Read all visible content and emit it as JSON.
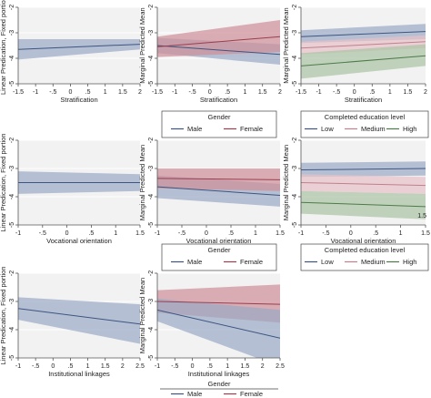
{
  "colors": {
    "navy": "#3e5580",
    "navy_band": "#9aaac6",
    "red": "#9b3e4e",
    "red_band": "#cf8f98",
    "pink": "#c0808c",
    "pink_band": "#e7c2c8",
    "green": "#4e7a4a",
    "green_band": "#a9c3a4",
    "plot_bg": "#f2f2f2",
    "grid": "#ffffff",
    "axis": "#555555"
  },
  "legends": {
    "gender": {
      "title": "Gender",
      "entries": [
        "Male",
        "Female"
      ]
    },
    "education": {
      "title": "Completed education level",
      "entries": [
        "Low",
        "Medium",
        "High"
      ]
    }
  },
  "stray_text": "1.5",
  "chart_data": [
    {
      "id": "r1c1",
      "type": "line",
      "xlabel": "Stratification",
      "ylabel": "Linear Predication, Fixed portion",
      "xticks": [
        "-1.5",
        "-1",
        "-.5",
        "0",
        ".5",
        "1",
        "1.5",
        "2"
      ],
      "xlim": [
        -1.5,
        2
      ],
      "yticks": [
        "-2",
        "-3",
        "-4",
        "-5"
      ],
      "ylim": [
        -5,
        -2
      ],
      "series": [
        {
          "color": "navy",
          "x": [
            -1.5,
            2
          ],
          "y": [
            -3.65,
            -3.45
          ],
          "lo": [
            -4.05,
            -3.65
          ],
          "hi": [
            -3.25,
            -3.25
          ]
        }
      ]
    },
    {
      "id": "r1c2",
      "type": "line",
      "xlabel": "Stratification",
      "ylabel": "Marginal Predicted Mean",
      "xticks": [
        "-1.5",
        "-1",
        "-.5",
        "0",
        ".5",
        "1",
        "1.5",
        "2"
      ],
      "xlim": [
        -1.5,
        2
      ],
      "yticks": [
        "-2",
        "-3",
        "-4",
        "-5"
      ],
      "ylim": [
        -5,
        -2
      ],
      "series": [
        {
          "color": "navy",
          "x": [
            -1.5,
            2
          ],
          "y": [
            -3.5,
            -3.85
          ],
          "lo": [
            -3.8,
            -4.25
          ],
          "hi": [
            -3.2,
            -3.45
          ]
        },
        {
          "color": "red",
          "x": [
            -1.5,
            2
          ],
          "y": [
            -3.55,
            -3.15
          ],
          "lo": [
            -3.95,
            -3.75
          ],
          "hi": [
            -3.15,
            -2.5
          ]
        }
      ]
    },
    {
      "id": "r1c3",
      "type": "line",
      "xlabel": "Stratification",
      "ylabel": "Marginal Predicted Mean",
      "xticks": [
        "-1.5",
        "-1",
        "-.5",
        "0",
        ".5",
        "1",
        "1.5",
        "2"
      ],
      "xlim": [
        -1.5,
        2
      ],
      "yticks": [
        "-2",
        "-3",
        "-4",
        "-5"
      ],
      "ylim": [
        -5,
        -2
      ],
      "series": [
        {
          "color": "navy",
          "x": [
            -1.5,
            2
          ],
          "y": [
            -3.15,
            -2.95
          ],
          "lo": [
            -3.4,
            -3.25
          ],
          "hi": [
            -2.9,
            -2.65
          ]
        },
        {
          "color": "pink",
          "x": [
            -1.5,
            2
          ],
          "y": [
            -3.6,
            -3.35
          ],
          "lo": [
            -3.85,
            -3.6
          ],
          "hi": [
            -3.35,
            -3.1
          ]
        },
        {
          "color": "green",
          "x": [
            -1.5,
            2
          ],
          "y": [
            -4.3,
            -3.9
          ],
          "lo": [
            -4.8,
            -4.3
          ],
          "hi": [
            -3.8,
            -3.45
          ]
        }
      ]
    },
    {
      "id": "r2c1",
      "type": "line",
      "xlabel": "Vocational orientation",
      "ylabel": "Linear Predication, Fixed portion",
      "xticks": [
        "-1",
        "-.5",
        "0",
        ".5",
        "1",
        "1.5"
      ],
      "xlim": [
        -1,
        1.5
      ],
      "yticks": [
        "-2",
        "-3",
        "-4",
        "-5"
      ],
      "ylim": [
        -5,
        -2
      ],
      "series": [
        {
          "color": "navy",
          "x": [
            -1,
            1.5
          ],
          "y": [
            -3.5,
            -3.5
          ],
          "lo": [
            -3.9,
            -3.8
          ],
          "hi": [
            -3.1,
            -3.2
          ]
        }
      ]
    },
    {
      "id": "r2c2",
      "type": "line",
      "xlabel": "Vocational orientation",
      "ylabel": "Marginal Predicted Mean",
      "xticks": [
        "-1",
        "-.5",
        "0",
        ".5",
        "1",
        "1.5"
      ],
      "xlim": [
        -1,
        1.5
      ],
      "yticks": [
        "-2",
        "-3",
        "-4",
        "-5"
      ],
      "ylim": [
        -5,
        -2
      ],
      "series": [
        {
          "color": "navy",
          "x": [
            -1,
            1.5
          ],
          "y": [
            -3.65,
            -3.95
          ],
          "lo": [
            -4.05,
            -4.35
          ],
          "hi": [
            -3.25,
            -3.55
          ]
        },
        {
          "color": "red",
          "x": [
            -1,
            1.5
          ],
          "y": [
            -3.35,
            -3.4
          ],
          "lo": [
            -3.7,
            -3.8
          ],
          "hi": [
            -3.0,
            -3.0
          ]
        }
      ]
    },
    {
      "id": "r2c3",
      "type": "line",
      "xlabel": "Vocational orientation",
      "ylabel": "Marginal Predicted Mean",
      "xticks": [
        "-1",
        "-.5",
        "0",
        ".5",
        "1",
        "1.5"
      ],
      "xlim": [
        -1,
        1.5
      ],
      "yticks": [
        "-2",
        "-3",
        "-4",
        "-5"
      ],
      "ylim": [
        -5,
        -2
      ],
      "series": [
        {
          "color": "navy",
          "x": [
            -1,
            1.5
          ],
          "y": [
            -3.05,
            -3.0
          ],
          "lo": [
            -3.3,
            -3.25
          ],
          "hi": [
            -2.8,
            -2.75
          ]
        },
        {
          "color": "pink",
          "x": [
            -1,
            1.5
          ],
          "y": [
            -3.5,
            -3.6
          ],
          "lo": [
            -3.8,
            -3.9
          ],
          "hi": [
            -3.2,
            -3.3
          ]
        },
        {
          "color": "green",
          "x": [
            -1,
            1.5
          ],
          "y": [
            -4.2,
            -4.35
          ],
          "lo": [
            -4.6,
            -4.8
          ],
          "hi": [
            -3.8,
            -3.9
          ]
        }
      ]
    },
    {
      "id": "r3c1",
      "type": "line",
      "xlabel": "Institutional linkages",
      "ylabel": "Linear Predication, Fixed portion",
      "xticks": [
        "-1",
        "-.5",
        "0",
        ".5",
        "1",
        "1.5",
        "2",
        "2.5"
      ],
      "xlim": [
        -1,
        2.5
      ],
      "yticks": [
        "-2",
        "-3",
        "-4",
        "-5"
      ],
      "ylim": [
        -5,
        -2
      ],
      "series": [
        {
          "color": "navy",
          "x": [
            -1,
            2.5
          ],
          "y": [
            -3.25,
            -3.8
          ],
          "lo": [
            -3.65,
            -4.5
          ],
          "hi": [
            -2.85,
            -3.1
          ]
        }
      ]
    },
    {
      "id": "r3c2",
      "type": "line",
      "xlabel": "Institutional linkages",
      "ylabel": "Marginal Predicted Mean",
      "xticks": [
        "-1",
        "-.5",
        "0",
        ".5",
        "1",
        "1.5",
        "2",
        "2.5"
      ],
      "xlim": [
        -1,
        2.5
      ],
      "yticks": [
        "-2",
        "-3",
        "-4",
        "-5"
      ],
      "ylim": [
        -5,
        -2
      ],
      "series": [
        {
          "color": "red",
          "x": [
            -1,
            2.5
          ],
          "y": [
            -3.0,
            -3.1
          ],
          "lo": [
            -3.4,
            -3.75
          ],
          "hi": [
            -2.6,
            -2.4
          ]
        },
        {
          "color": "navy",
          "x": [
            -1,
            2.5
          ],
          "y": [
            -3.3,
            -4.3
          ],
          "lo": [
            -3.7,
            -5.3
          ],
          "hi": [
            -2.9,
            -3.3
          ]
        }
      ]
    }
  ]
}
